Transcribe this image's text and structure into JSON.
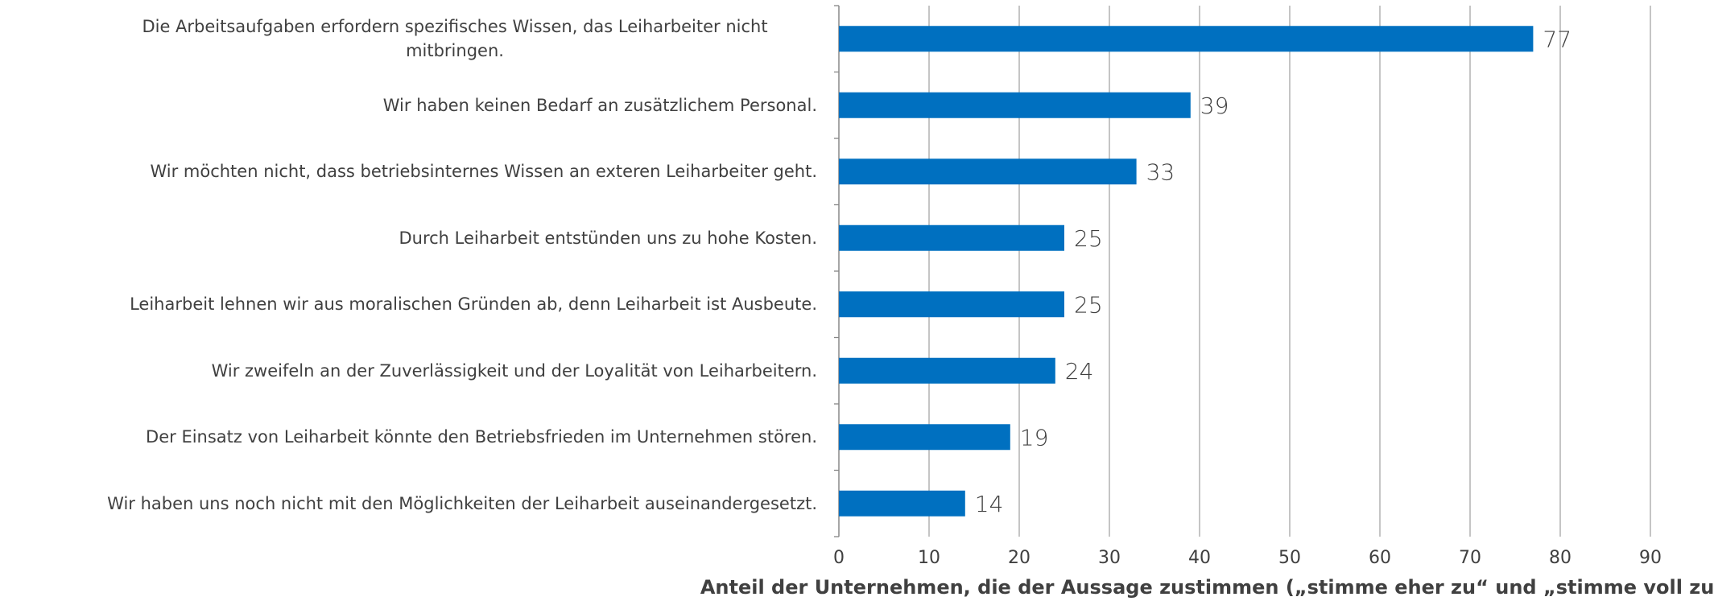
{
  "chart_data": {
    "type": "bar",
    "orientation": "horizontal",
    "categories": [
      "Die Arbeitsaufgaben erfordern spezifisches Wissen, das Leiharbeiter nicht mitbringen.",
      "Wir haben keinen Bedarf an zusätzlichem Personal.",
      "Wir möchten nicht, dass betriebsinternes Wissen an exteren Leiharbeiter geht.",
      "Durch Leiharbeit entstünden uns zu hohe Kosten.",
      "Leiharbeit lehnen wir aus moralischen Gründen ab, denn Leiharbeit ist Ausbeute.",
      "Wir zweifeln an der Zuverlässigkeit und der Loyalität von Leiharbeitern.",
      "Der Einsatz von Leiharbeit könnte den Betriebsfrieden im Unternehmen stören.",
      "Wir haben uns noch nicht mit den Möglichkeiten der Leiharbeit auseinandergesetzt."
    ],
    "values": [
      77,
      39,
      33,
      25,
      25,
      24,
      19,
      14
    ],
    "color": "#0070c0",
    "xlim": [
      0,
      90
    ],
    "xticks": [
      0,
      10,
      20,
      30,
      40,
      50,
      60,
      70,
      80,
      90
    ],
    "grid": true,
    "x_label": "Anteil der Unternehmen, die der Aussage zustimmen („stimme eher zu“ und „stimme voll zu“ in %)"
  }
}
